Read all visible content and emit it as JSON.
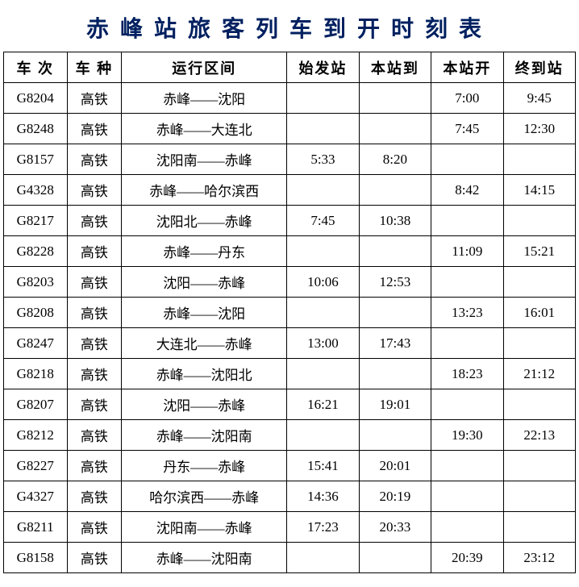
{
  "title": "赤峰站旅客列车到开时刻表",
  "headers": {
    "train_no": "车 次",
    "train_type": "车 种",
    "route": "运行区间",
    "origin_depart": "始发站",
    "arrive_here": "本站到",
    "depart_here": "本站开",
    "terminal": "终到站"
  },
  "rows": [
    {
      "train_no": "G8204",
      "train_type": "高铁",
      "route": "赤峰——沈阳",
      "origin_depart": "",
      "arrive_here": "",
      "depart_here": "7:00",
      "terminal": "9:45"
    },
    {
      "train_no": "G8248",
      "train_type": "高铁",
      "route": "赤峰——大连北",
      "origin_depart": "",
      "arrive_here": "",
      "depart_here": "7:45",
      "terminal": "12:30"
    },
    {
      "train_no": "G8157",
      "train_type": "高铁",
      "route": "沈阳南——赤峰",
      "origin_depart": "5:33",
      "arrive_here": "8:20",
      "depart_here": "",
      "terminal": ""
    },
    {
      "train_no": "G4328",
      "train_type": "高铁",
      "route": "赤峰——哈尔滨西",
      "origin_depart": "",
      "arrive_here": "",
      "depart_here": "8:42",
      "terminal": "14:15"
    },
    {
      "train_no": "G8217",
      "train_type": "高铁",
      "route": "沈阳北——赤峰",
      "origin_depart": "7:45",
      "arrive_here": "10:38",
      "depart_here": "",
      "terminal": ""
    },
    {
      "train_no": "G8228",
      "train_type": "高铁",
      "route": "赤峰——丹东",
      "origin_depart": "",
      "arrive_here": "",
      "depart_here": "11:09",
      "terminal": "15:21"
    },
    {
      "train_no": "G8203",
      "train_type": "高铁",
      "route": "沈阳——赤峰",
      "origin_depart": "10:06",
      "arrive_here": "12:53",
      "depart_here": "",
      "terminal": ""
    },
    {
      "train_no": "G8208",
      "train_type": "高铁",
      "route": "赤峰——沈阳",
      "origin_depart": "",
      "arrive_here": "",
      "depart_here": "13:23",
      "terminal": "16:01"
    },
    {
      "train_no": "G8247",
      "train_type": "高铁",
      "route": "大连北——赤峰",
      "origin_depart": "13:00",
      "arrive_here": "17:43",
      "depart_here": "",
      "terminal": ""
    },
    {
      "train_no": "G8218",
      "train_type": "高铁",
      "route": "赤峰——沈阳北",
      "origin_depart": "",
      "arrive_here": "",
      "depart_here": "18:23",
      "terminal": "21:12"
    },
    {
      "train_no": "G8207",
      "train_type": "高铁",
      "route": "沈阳——赤峰",
      "origin_depart": "16:21",
      "arrive_here": "19:01",
      "depart_here": "",
      "terminal": ""
    },
    {
      "train_no": "G8212",
      "train_type": "高铁",
      "route": "赤峰——沈阳南",
      "origin_depart": "",
      "arrive_here": "",
      "depart_here": "19:30",
      "terminal": "22:13"
    },
    {
      "train_no": "G8227",
      "train_type": "高铁",
      "route": "丹东——赤峰",
      "origin_depart": "15:41",
      "arrive_here": "20:01",
      "depart_here": "",
      "terminal": ""
    },
    {
      "train_no": "G4327",
      "train_type": "高铁",
      "route": "哈尔滨西——赤峰",
      "origin_depart": "14:36",
      "arrive_here": "20:19",
      "depart_here": "",
      "terminal": ""
    },
    {
      "train_no": "G8211",
      "train_type": "高铁",
      "route": "沈阳南——赤峰",
      "origin_depart": "17:23",
      "arrive_here": "20:33",
      "depart_here": "",
      "terminal": ""
    },
    {
      "train_no": "G8158",
      "train_type": "高铁",
      "route": "赤峰——沈阳南",
      "origin_depart": "",
      "arrive_here": "",
      "depart_here": "20:39",
      "terminal": "23:12"
    }
  ]
}
